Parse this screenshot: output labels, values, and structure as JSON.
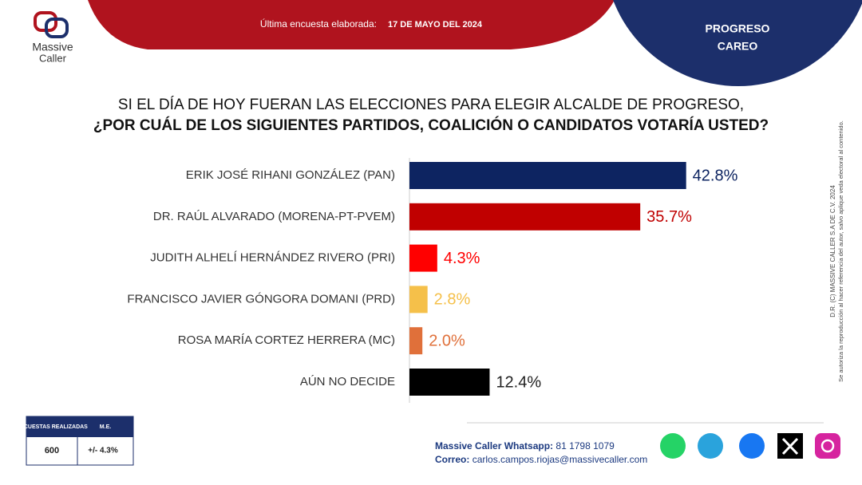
{
  "logo": {
    "line1": "Massive",
    "line2": "Caller"
  },
  "header": {
    "survey_label": "Última encuesta elaborada:",
    "survey_date": "17 DE MAYO DEL 2024",
    "place": "PROGRESO",
    "subplace": "CAREO"
  },
  "chart_data": {
    "type": "bar",
    "orientation": "horizontal",
    "title": "SI EL DÍA DE HOY FUERAN LAS ELECCIONES PARA ELEGIR ALCALDE DE PROGRESO,",
    "subtitle": "¿POR CUÁL DE LOS SIGUIENTES PARTIDOS, COALICIÓN O CANDIDATOS VOTARÍA USTED?",
    "categories": [
      "ERIK JOSÉ RIHANI GONZÁLEZ (PAN)",
      "DR. RAÚL ALVARADO (MORENA-PT-PVEM)",
      "JUDITH ALHELÍ HERNÁNDEZ RIVERO (PRI)",
      "FRANCISCO JAVIER GÓNGORA DOMANI (PRD)",
      "ROSA MARÍA CORTEZ HERRERA (MC)",
      "AÚN NO DECIDE"
    ],
    "values": [
      42.8,
      35.7,
      4.3,
      2.8,
      2.0,
      12.4
    ],
    "value_labels": [
      "42.8%",
      "35.7%",
      "4.3%",
      "2.8%",
      "2.0%",
      "12.4%"
    ],
    "colors": [
      "#0d2461",
      "#c00000",
      "#ff0000",
      "#f5c04a",
      "#e0703a",
      "#000000"
    ]
  },
  "copyright": {
    "line1": "D.R. (C) MASSIVE CALLER S.A DE C.V. 2024",
    "line2": "Se autoriza la reproducción al hacer referencia del autor, salvo aplique veda electoral al contenido."
  },
  "table": {
    "header": [
      "ENCUESTAS REALIZADAS",
      "M.E."
    ],
    "row": [
      "600",
      "+/- 4.3%"
    ]
  },
  "footer": {
    "whatsapp_label": "Massive Caller Whatsapp:",
    "whatsapp": "81 1798 1079",
    "email_label": "Correo:",
    "email": "carlos.campos.riojas@massivecaller.com"
  }
}
